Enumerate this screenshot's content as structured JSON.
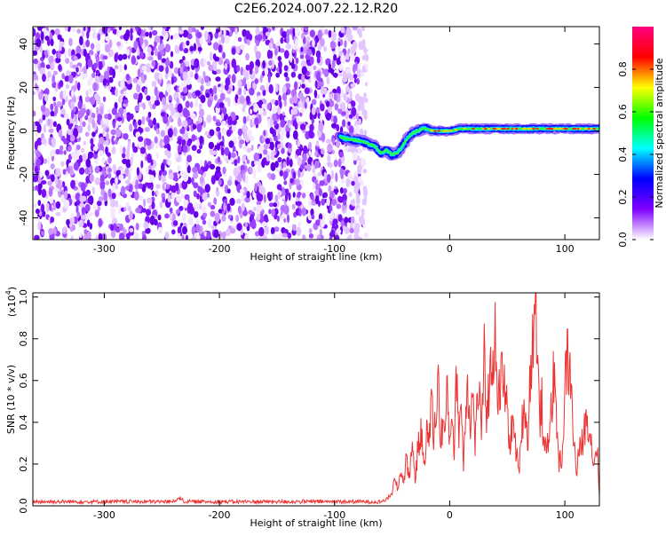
{
  "page": {
    "title": "C2E6.2024.007.22.12.R20"
  },
  "chart_data": [
    {
      "type": "heatmap",
      "title": "C2E6.2024.007.22.12.R20",
      "xlabel": "Height of straight line (km)",
      "ylabel": "Frequency (Hz)",
      "xlim": [
        -362,
        130
      ],
      "ylim": [
        -50,
        48
      ],
      "x_ticks": [
        -300,
        -200,
        -100,
        0,
        100
      ],
      "x_tick_labels": [
        "-300",
        "-200",
        "-100",
        "0",
        "100"
      ],
      "y_ticks": [
        -40,
        -20,
        0,
        20,
        40
      ],
      "y_tick_labels": [
        "-40",
        "-20",
        "0",
        "20",
        "40"
      ],
      "noise_region_x": [
        -362,
        -75
      ],
      "signal_track": {
        "x": [
          -95,
          -85,
          -75,
          -65,
          -60,
          -55,
          -50,
          -45,
          -40,
          -36,
          -32,
          -28,
          -24,
          -20,
          -15,
          -10,
          -5,
          0,
          10,
          20,
          40,
          60,
          80,
          100,
          130
        ],
        "y": [
          -3,
          -4,
          -5,
          -7,
          -10,
          -9,
          -11,
          -10,
          -6,
          -3,
          -1,
          0,
          1,
          1,
          0,
          0,
          0,
          0,
          1,
          1,
          1,
          1,
          1,
          1,
          1
        ]
      },
      "grid": false,
      "colorbar": {
        "label": "Normalized spectral amplitude",
        "range": [
          0.0,
          1.0
        ],
        "ticks": [
          0.0,
          0.2,
          0.4,
          0.6,
          0.8
        ],
        "tick_labels": [
          "0.0",
          "0.2",
          "0.4",
          "0.6",
          "0.8"
        ],
        "colors": [
          "#ffffff",
          "#8000ff",
          "#0000ff",
          "#00ffff",
          "#00ff00",
          "#ffff00",
          "#ff0000",
          "#ff0080"
        ]
      }
    },
    {
      "type": "line",
      "xlabel": "Height of straight line (km)",
      "ylabel": "SNR (10 * v/v)",
      "y_multiplier_label": "(x10",
      "y_multiplier_exp": "4",
      "y_multiplier_close": ")",
      "xlim": [
        -362,
        130
      ],
      "ylim": [
        0.0,
        1.02
      ],
      "x_ticks": [
        -300,
        -200,
        -100,
        0,
        100
      ],
      "x_tick_labels": [
        "-300",
        "-200",
        "-100",
        "0",
        "100"
      ],
      "y_ticks": [
        0.0,
        0.2,
        0.4,
        0.6,
        0.8,
        1.0
      ],
      "y_tick_labels": [
        "0.0",
        "0.2",
        "0.4",
        "0.6",
        "0.8",
        "1.0"
      ],
      "grid": false,
      "line_color": "#ee3333",
      "series": [
        {
          "x": [
            -362,
            -340,
            -320,
            -300,
            -280,
            -260,
            -240,
            -235,
            -230,
            -220,
            -200,
            -180,
            -160,
            -140,
            -120,
            -100,
            -80,
            -60,
            -55,
            -50,
            -48,
            -45,
            -42,
            -40,
            -38,
            -35,
            -32,
            -30,
            -28,
            -25,
            -22,
            -20,
            -18,
            -16,
            -14,
            -12,
            -10,
            -8,
            -6,
            -4,
            -2,
            0,
            2,
            4,
            6,
            8,
            10,
            12,
            15,
            18,
            20,
            22,
            25,
            28,
            30,
            32,
            35,
            38,
            40,
            42,
            45,
            48,
            50,
            52,
            55,
            58,
            60,
            62,
            65,
            68,
            70,
            72,
            74,
            75,
            76,
            78,
            80,
            82,
            85,
            88,
            90,
            92,
            95,
            98,
            100,
            102,
            105,
            108,
            110,
            112,
            115,
            118,
            120,
            122,
            125,
            128,
            130
          ],
          "y": [
            0.02,
            0.02,
            0.02,
            0.02,
            0.02,
            0.02,
            0.02,
            0.04,
            0.02,
            0.02,
            0.02,
            0.02,
            0.02,
            0.02,
            0.02,
            0.02,
            0.02,
            0.02,
            0.03,
            0.06,
            0.12,
            0.08,
            0.18,
            0.1,
            0.22,
            0.15,
            0.3,
            0.12,
            0.25,
            0.35,
            0.2,
            0.4,
            0.25,
            0.58,
            0.3,
            0.45,
            0.62,
            0.3,
            0.4,
            0.35,
            0.55,
            0.3,
            0.48,
            0.25,
            0.66,
            0.35,
            0.5,
            0.2,
            0.62,
            0.4,
            0.55,
            0.3,
            0.58,
            0.35,
            0.7,
            0.45,
            0.6,
            0.75,
            0.8,
            0.5,
            0.62,
            0.55,
            0.45,
            0.3,
            0.4,
            0.25,
            0.15,
            0.35,
            0.5,
            0.3,
            0.65,
            0.8,
            0.9,
            1.02,
            0.75,
            0.4,
            0.5,
            0.25,
            0.3,
            0.45,
            0.6,
            0.5,
            0.2,
            0.25,
            0.55,
            0.72,
            0.6,
            0.3,
            0.15,
            0.25,
            0.3,
            0.4,
            0.42,
            0.35,
            0.2,
            0.3,
            0.05
          ]
        }
      ]
    }
  ]
}
